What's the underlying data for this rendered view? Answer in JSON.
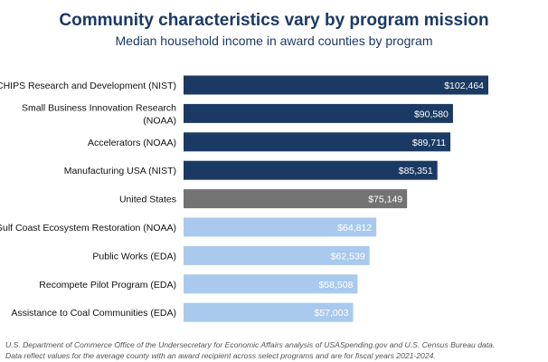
{
  "title": "Community characteristics vary by program mission",
  "subtitle": "Median household income in award counties by program",
  "footnotes": [
    "U.S. Department of Commerce Office of the Undersecretary for Economic Affairs analysis of USASpending.gov and U.S. Census Bureau data.",
    "Data reflect values for the average county with an award recipient across select programs and are for fiscal years 2021-2024."
  ],
  "colors": {
    "program_dark": "#1b3a63",
    "national": "#737373",
    "program_light": "#a9caed",
    "title": "#1b3a63"
  },
  "chart_data": {
    "type": "bar",
    "orientation": "horizontal",
    "title": "Community characteristics vary by program mission",
    "subtitle": "Median household income in award counties by program",
    "xlabel": "",
    "ylabel": "",
    "xlim": [
      0,
      102464
    ],
    "grid": false,
    "legend": "none",
    "categories": [
      [
        "CHIPS Research and Development (NIST)"
      ],
      [
        "Small Business Innovation Research",
        "(NOAA)"
      ],
      [
        "Accelerators (NOAA)"
      ],
      [
        "Manufacturing USA (NIST)"
      ],
      [
        "United States"
      ],
      [
        "Gulf Coast Ecosystem Restoration (NOAA)"
      ],
      [
        "Public Works (EDA)"
      ],
      [
        "Recompete Pilot Program (EDA)"
      ],
      [
        "Assistance to Coal Communities (EDA)"
      ]
    ],
    "values": [
      102464,
      90580,
      89711,
      85351,
      75149,
      64812,
      62539,
      58508,
      57003
    ],
    "value_labels": [
      "$102,464",
      "$90,580",
      "$89,711",
      "$85,351",
      "$75,149",
      "$64,812",
      "$62,539",
      "$58,508",
      "$57,003"
    ],
    "bar_colors": [
      "#1b3a63",
      "#1b3a63",
      "#1b3a63",
      "#1b3a63",
      "#737373",
      "#a9caed",
      "#a9caed",
      "#a9caed",
      "#a9caed"
    ]
  }
}
